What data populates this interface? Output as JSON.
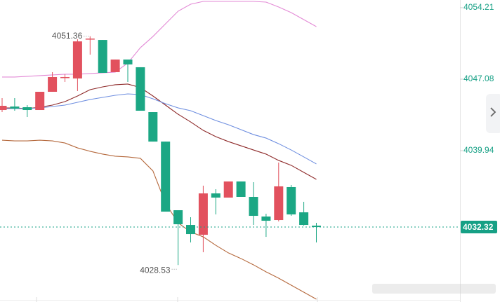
{
  "chart_data": {
    "type": "candlestick",
    "ylim": [
      4024.84,
      4054.98
    ],
    "yticks": [
      4054.21,
      4047.08,
      4039.94
    ],
    "last_price": 4032.32,
    "up_color": "#e2515e",
    "down_color": "#1ba784",
    "open": [
      4044.0,
      4044.35,
      4044.28,
      4044.0,
      4045.82,
      4047.22,
      4047.15,
      4051.06,
      4050.99,
      4047.78,
      4049.04,
      4048.27,
      4043.79,
      4040.85,
      4034.0,
      4032.53,
      4031.55,
      4035.68,
      4035.26,
      4036.87,
      4035.33,
      4033.37,
      4033.02,
      4036.31,
      4033.79,
      4032.46
    ],
    "close": [
      4044.42,
      4044.14,
      4044.0,
      4045.82,
      4047.29,
      4047.29,
      4050.85,
      4051.13,
      4047.71,
      4049.04,
      4048.55,
      4043.93,
      4040.85,
      4033.86,
      4032.6,
      4031.62,
      4035.68,
      4035.26,
      4036.87,
      4035.33,
      4033.44,
      4032.95,
      4036.38,
      4033.58,
      4032.53,
      4032.32
    ],
    "high": [
      4045.19,
      4045.19,
      4044.49,
      4045.82,
      4047.78,
      4047.57,
      4051.06,
      4051.36,
      4050.99,
      4049.04,
      4049.04,
      4048.27,
      4043.79,
      4040.85,
      4034.0,
      4033.3,
      4036.45,
      4036.1,
      4036.87,
      4036.87,
      4036.8,
      4033.65,
      4038.76,
      4036.52,
      4034.84,
      4032.74
    ],
    "low": [
      4043.79,
      4043.93,
      4043.3,
      4044.0,
      4045.82,
      4046.8,
      4045.89,
      4049.53,
      4047.71,
      4047.78,
      4046.8,
      4043.93,
      4040.85,
      4033.86,
      4028.53,
      4030.78,
      4029.81,
      4033.58,
      4035.26,
      4035.33,
      4032.53,
      4031.34,
      4032.88,
      4033.44,
      4032.46,
      4030.78
    ],
    "lines": [
      {
        "color": "#e38ad6",
        "values": [
          4047.29,
          4047.29,
          4047.36,
          4047.43,
          4047.5,
          4047.57,
          4047.57,
          4047.64,
          4047.71,
          4047.78,
          4048.69,
          4050.22,
          4051.34,
          4052.6,
          4053.86,
          4054.56,
          4054.84,
          4054.84,
          4054.84,
          4054.84,
          4054.84,
          4054.77,
          4054.28,
          4053.72,
          4053.02,
          4052.32
        ]
      },
      {
        "color": "#8e2a2a",
        "values": [
          4044.21,
          4044.21,
          4044.14,
          4044.28,
          4044.49,
          4044.84,
          4045.4,
          4046.03,
          4046.31,
          4046.52,
          4046.59,
          4046.24,
          4045.4,
          4044.49,
          4043.58,
          4042.81,
          4041.97,
          4041.34,
          4040.85,
          4040.43,
          4040.01,
          4039.6,
          4038.97,
          4038.48,
          4037.78,
          4037.08
        ]
      },
      {
        "color": "#6f8fe0",
        "values": [
          4044.14,
          4044.14,
          4044.14,
          4044.21,
          4044.35,
          4044.49,
          4044.77,
          4045.05,
          4045.26,
          4045.47,
          4045.61,
          4045.54,
          4045.12,
          4044.63,
          4044.21,
          4043.93,
          4043.44,
          4042.95,
          4042.53,
          4042.04,
          4041.55,
          4041.2,
          4040.64,
          4040.01,
          4039.32,
          4038.62
        ]
      },
      {
        "color": "#b5693d",
        "values": [
          4040.99,
          4040.92,
          4040.92,
          4040.99,
          4040.92,
          4040.71,
          4040.22,
          4039.88,
          4039.6,
          4039.39,
          4039.32,
          4039.18,
          4037.92,
          4034.7,
          4032.74,
          4031.83,
          4031.34,
          4030.5,
          4029.74,
          4029.18,
          4028.55,
          4027.85,
          4027.22,
          4026.52,
          4025.82,
          4025.12
        ]
      }
    ]
  }
}
